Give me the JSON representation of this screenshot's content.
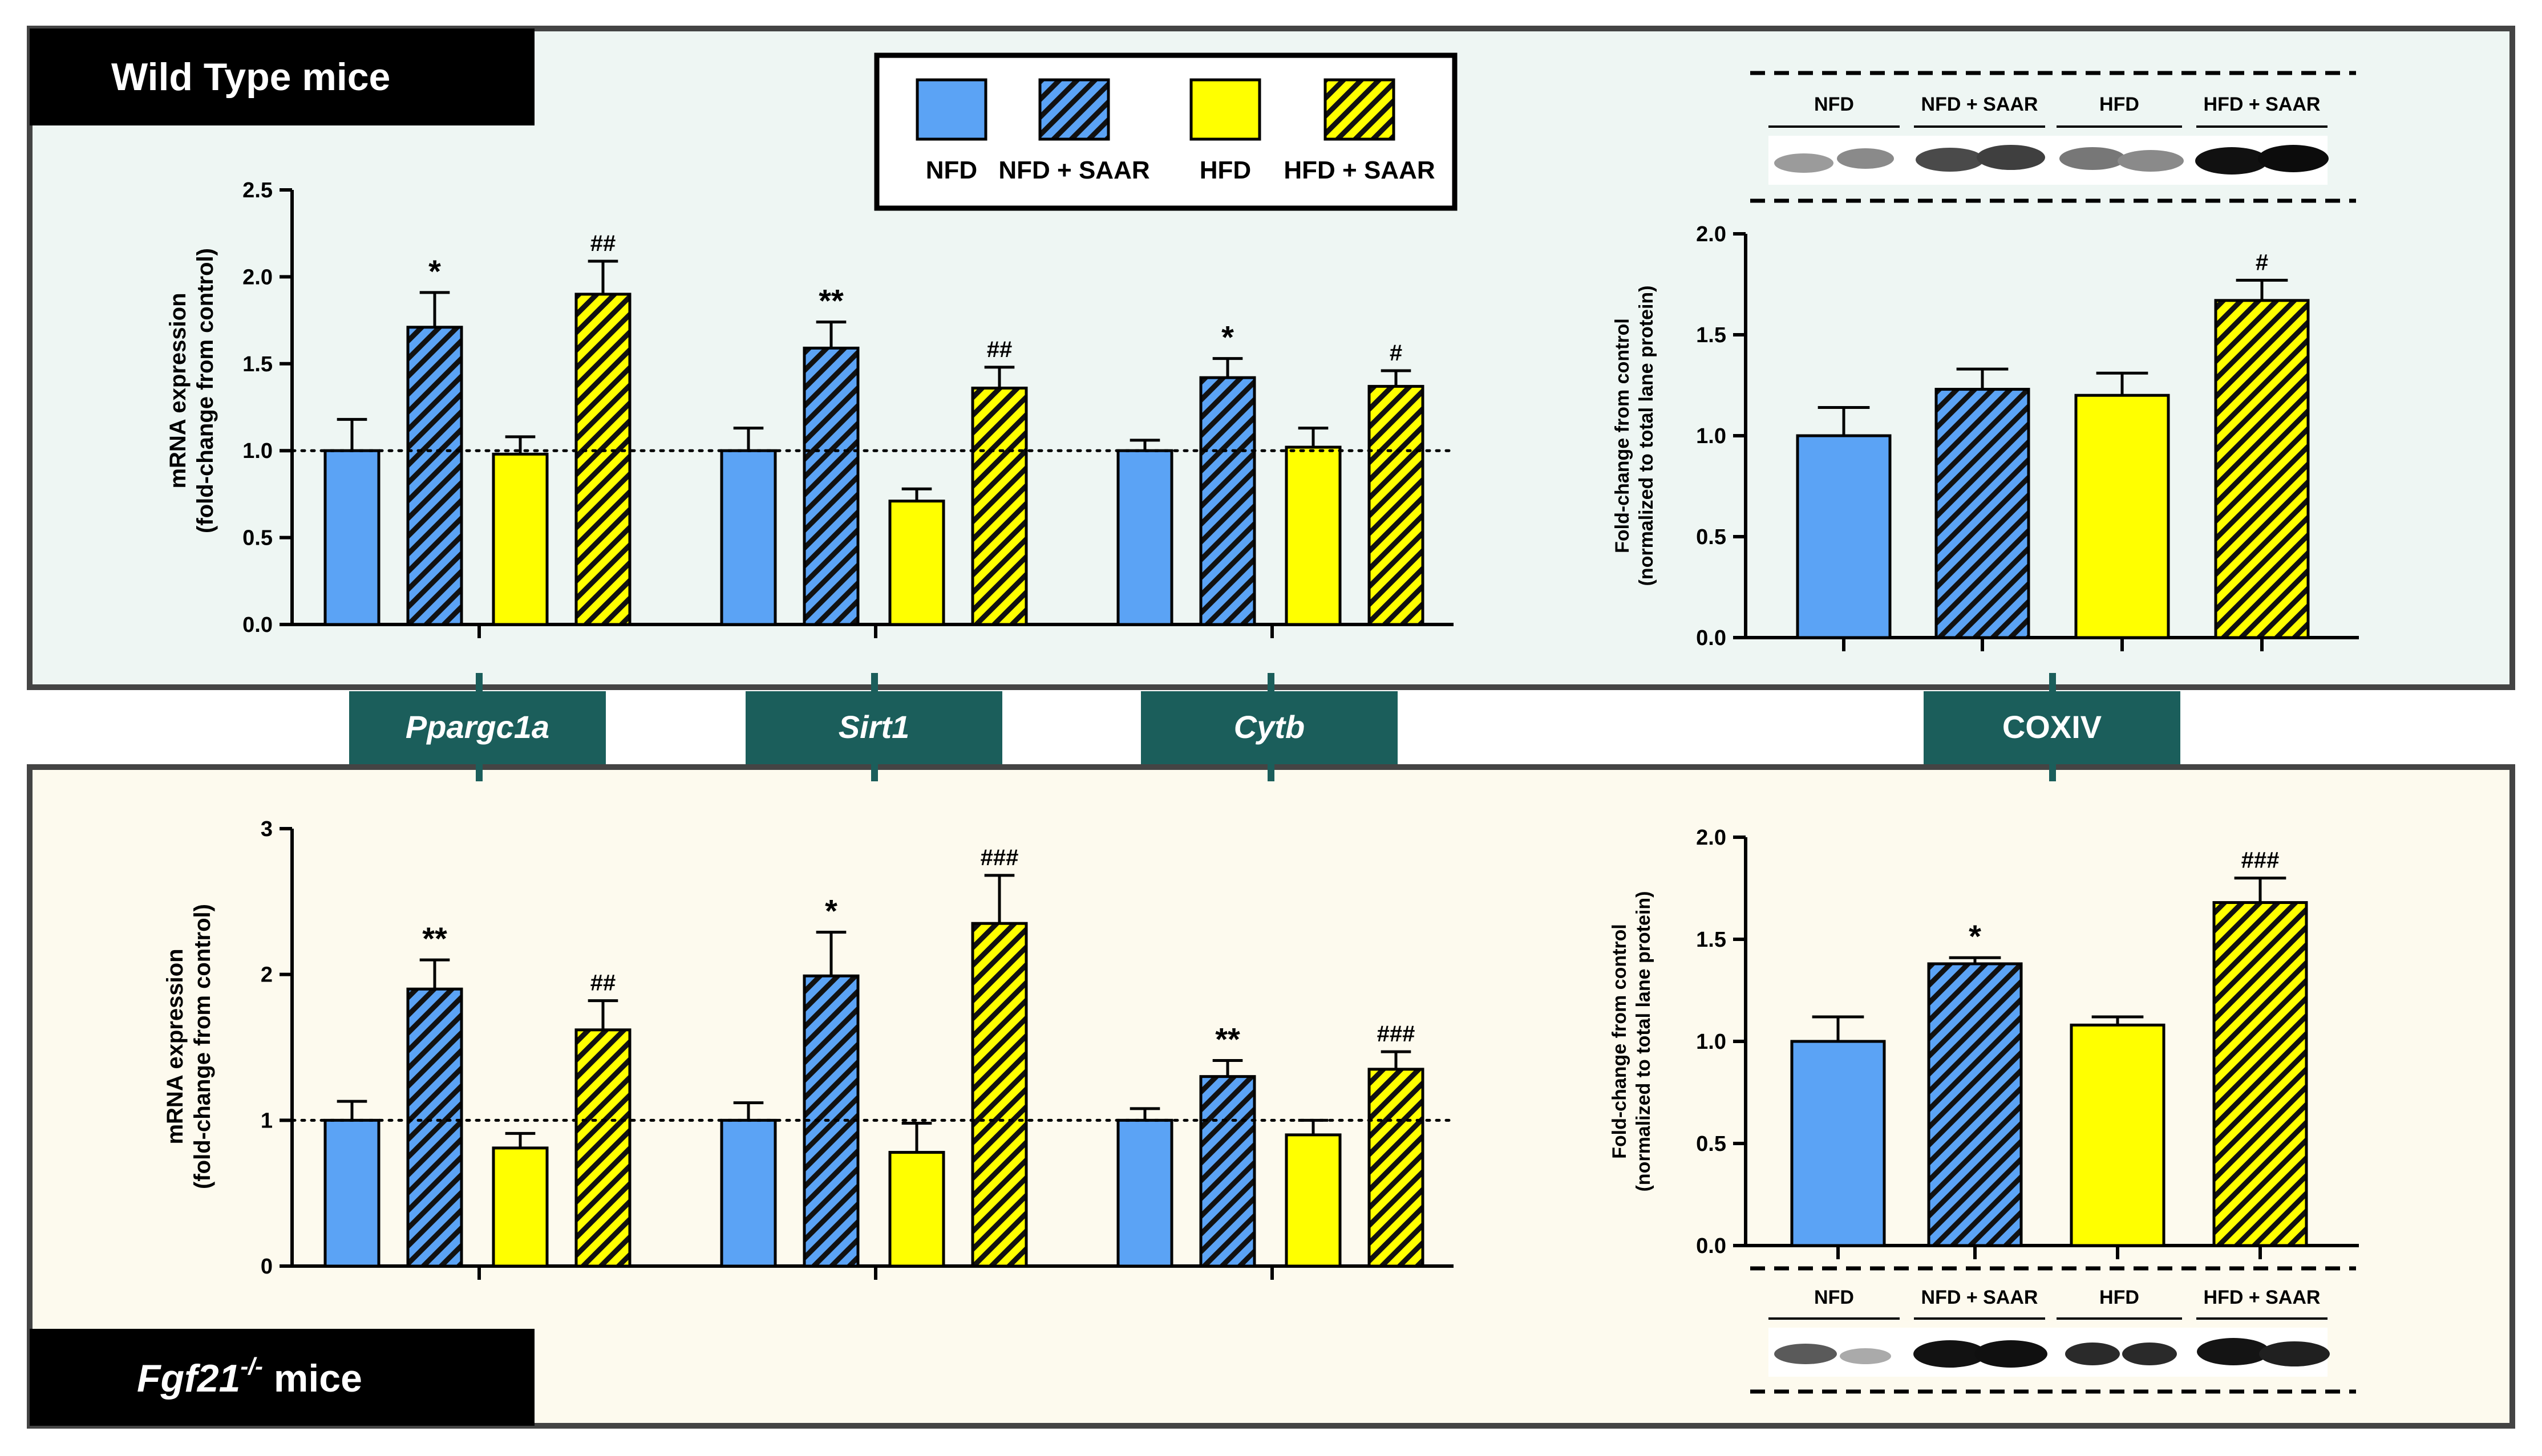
{
  "legend": {
    "labels": [
      "NFD",
      "NFD + SAAR",
      "HFD",
      "HFD + SAAR"
    ],
    "colors": {
      "blue": "#5ba3f5",
      "yellow": "#ffff00",
      "teal": "#1b5e5b",
      "wt_bg": "#eef6f3",
      "ko_bg": "#fdfaee",
      "border": "#444444"
    }
  },
  "panels": {
    "wt": {
      "label": "Wild Type mice"
    },
    "ko": {
      "label_gene": "Fgf21",
      "label_sup": "-/-",
      "label_rest": " mice"
    }
  },
  "genes": [
    "Ppargc1a",
    "Sirt1",
    "Cytb",
    "COXIV"
  ],
  "blot": {
    "lanes": [
      "NFD",
      "NFD + SAAR",
      "HFD",
      "HFD + SAAR"
    ]
  },
  "chart_data": [
    {
      "id": "wt_mrna",
      "type": "bar",
      "ylabel": [
        "mRNA expression",
        "(fold-change from control)"
      ],
      "ylim": [
        0,
        2.5
      ],
      "yticks": [
        "0.0",
        "0.5",
        "1.0",
        "1.5",
        "2.0",
        "2.5"
      ],
      "reference_line": 1.0,
      "categories": [
        "Ppargc1a",
        "Sirt1",
        "Cytb"
      ],
      "series": [
        {
          "name": "NFD",
          "values": [
            1.0,
            1.0,
            1.0
          ],
          "errors": [
            0.18,
            0.13,
            0.06
          ],
          "labels": [
            "",
            "",
            ""
          ]
        },
        {
          "name": "NFD + SAAR",
          "values": [
            1.71,
            1.59,
            1.42
          ],
          "errors": [
            0.2,
            0.15,
            0.11
          ],
          "labels": [
            "*",
            "**",
            "*"
          ]
        },
        {
          "name": "HFD",
          "values": [
            0.98,
            0.71,
            1.02
          ],
          "errors": [
            0.1,
            0.07,
            0.11
          ],
          "labels": [
            "",
            "",
            ""
          ]
        },
        {
          "name": "HFD + SAAR",
          "values": [
            1.9,
            1.36,
            1.37
          ],
          "errors": [
            0.19,
            0.12,
            0.09
          ],
          "labels": [
            "##",
            "##",
            "#"
          ]
        }
      ]
    },
    {
      "id": "wt_coxiv",
      "type": "bar",
      "ylabel": [
        "Fold-change from control",
        "(normalized to total lane protein)"
      ],
      "ylim": [
        0,
        2.0
      ],
      "yticks": [
        "0.0",
        "0.5",
        "1.0",
        "1.5",
        "2.0"
      ],
      "categories": [
        "NFD",
        "NFD + SAAR",
        "HFD",
        "HFD + SAAR"
      ],
      "values": [
        1.0,
        1.23,
        1.2,
        1.67
      ],
      "errors": [
        0.14,
        0.1,
        0.11,
        0.1
      ],
      "labels": [
        "",
        "",
        "",
        "#"
      ]
    },
    {
      "id": "ko_mrna",
      "type": "bar",
      "ylabel": [
        "mRNA expression",
        "(fold-change from control)"
      ],
      "ylim": [
        0,
        3
      ],
      "yticks": [
        "0",
        "1",
        "2",
        "3"
      ],
      "reference_line": 1.0,
      "categories": [
        "Ppargc1a",
        "Sirt1",
        "Cytb"
      ],
      "series": [
        {
          "name": "NFD",
          "values": [
            1.0,
            1.0,
            1.0
          ],
          "errors": [
            0.13,
            0.12,
            0.08
          ],
          "labels": [
            "",
            "",
            ""
          ]
        },
        {
          "name": "NFD + SAAR",
          "values": [
            1.9,
            1.99,
            1.3
          ],
          "errors": [
            0.2,
            0.3,
            0.11
          ],
          "labels": [
            "**",
            "*",
            "**"
          ]
        },
        {
          "name": "HFD",
          "values": [
            0.81,
            0.78,
            0.9
          ],
          "errors": [
            0.1,
            0.2,
            0.1
          ],
          "labels": [
            "",
            "",
            ""
          ]
        },
        {
          "name": "HFD + SAAR",
          "values": [
            1.62,
            2.35,
            1.35
          ],
          "errors": [
            0.2,
            0.33,
            0.12
          ],
          "labels": [
            "##",
            "###",
            "###"
          ]
        }
      ]
    },
    {
      "id": "ko_coxiv",
      "type": "bar",
      "ylabel": [
        "Fold-change from control",
        "(normalized to total lane protein)"
      ],
      "ylim": [
        0,
        2.0
      ],
      "yticks": [
        "0.0",
        "0.5",
        "1.0",
        "1.5",
        "2.0"
      ],
      "categories": [
        "NFD",
        "NFD + SAAR",
        "HFD",
        "HFD + SAAR"
      ],
      "values": [
        1.0,
        1.38,
        1.08,
        1.68
      ],
      "errors": [
        0.12,
        0.03,
        0.04,
        0.12
      ],
      "labels": [
        "",
        "*",
        "",
        "###"
      ]
    }
  ]
}
